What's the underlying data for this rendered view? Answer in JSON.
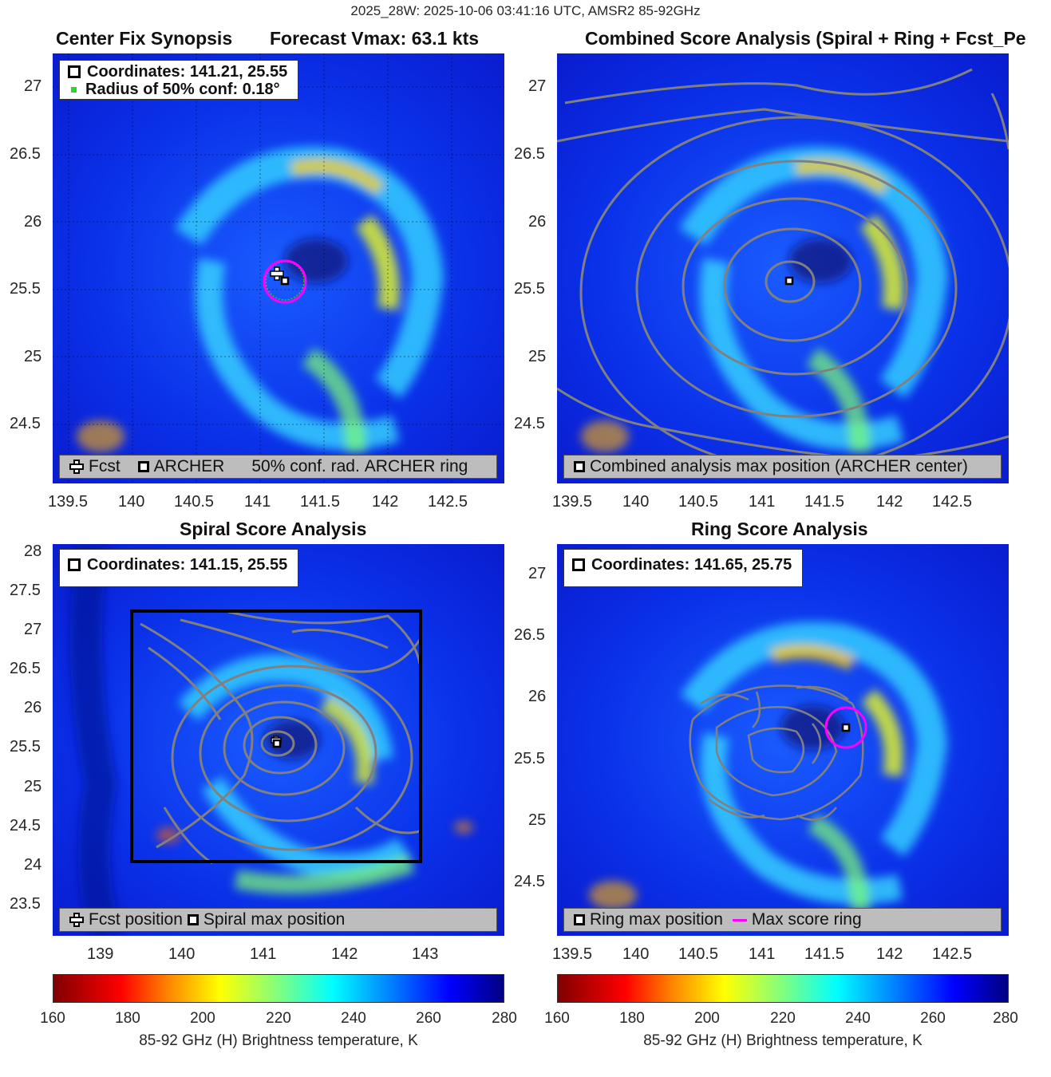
{
  "suptitle": "2025_28W: 2025-10-06 03:41:16 UTC, AMSR2 85-92GHz",
  "colors": {
    "contour": "#808080",
    "ring": "#ff00ff",
    "conf": "#22dd22",
    "legend_bg": "#bdbdbd"
  },
  "panels": {
    "synopsis": {
      "title_left": "Center Fix Synopsis",
      "title_right": "Forecast Vmax: 63.1 kts",
      "legend_coords": "Coordinates: 141.21, 25.55",
      "legend_radius": "Radius of 50% conf: 0.18°",
      "bottom_legend": [
        "Fcst",
        "ARCHER",
        "50% conf. rad.",
        "ARCHER ring"
      ],
      "yticks": [
        "27",
        "26.5",
        "26",
        "25.5",
        "25",
        "24.5"
      ],
      "xticks": [
        "139.5",
        "140",
        "140.5",
        "141",
        "141.5",
        "142",
        "142.5"
      ]
    },
    "combined": {
      "title": "Combined Score Analysis (Spiral + Ring + Fcst_Pe",
      "bottom_legend": [
        "Combined analysis max position (ARCHER center)"
      ],
      "yticks": [
        "27",
        "26.5",
        "26",
        "25.5",
        "25",
        "24.5"
      ],
      "xticks": [
        "139.5",
        "140",
        "140.5",
        "141",
        "141.5",
        "142",
        "142.5"
      ]
    },
    "spiral": {
      "title": "Spiral Score Analysis",
      "legend_coords": "Coordinates: 141.15, 25.55",
      "bottom_legend": [
        "Fcst position",
        "Spiral max position"
      ],
      "yticks": [
        "28",
        "27.5",
        "27",
        "26.5",
        "26",
        "25.5",
        "25",
        "24.5",
        "24",
        "23.5"
      ],
      "xticks": [
        "139",
        "140",
        "141",
        "142",
        "143"
      ]
    },
    "ring": {
      "title": "Ring Score Analysis",
      "legend_coords": "Coordinates: 141.65, 25.75",
      "bottom_legend": [
        "Ring max position",
        "Max score ring"
      ],
      "yticks": [
        "27",
        "26.5",
        "26",
        "25.5",
        "25",
        "24.5"
      ],
      "xticks": [
        "139.5",
        "140",
        "140.5",
        "141",
        "141.5",
        "142",
        "142.5"
      ]
    }
  },
  "colorbars": {
    "ticks": [
      "160",
      "180",
      "200",
      "220",
      "240",
      "260",
      "280"
    ],
    "label": "85-92 GHz (H) Brightness temperature, K"
  },
  "chart_data": [
    {
      "type": "heatmap",
      "title": "Center Fix Synopsis",
      "subtitle": "Forecast Vmax: 63.1 kts",
      "xlim": [
        139.35,
        142.9
      ],
      "ylim": [
        24.05,
        27.25
      ],
      "forecast_position": [
        141.15,
        25.6
      ],
      "archer_center": [
        141.21,
        25.55
      ],
      "radius_50pct_conf_deg": 0.18,
      "colorbar_range_K": [
        160,
        280
      ]
    },
    {
      "type": "heatmap",
      "title": "Combined Score Analysis (Spiral + Ring + Fcst_Pe",
      "xlim": [
        139.35,
        142.9
      ],
      "ylim": [
        24.05,
        27.25
      ],
      "max_position": [
        141.21,
        25.55
      ],
      "colorbar_range_K": [
        160,
        280
      ]
    },
    {
      "type": "heatmap",
      "title": "Spiral Score Analysis",
      "xlim": [
        138.4,
        143.95
      ],
      "ylim": [
        23.2,
        28.2
      ],
      "spiral_max_position": [
        141.15,
        25.55
      ],
      "search_box": {
        "x": [
          139.35,
          142.9
        ],
        "y": [
          24.05,
          27.25
        ]
      },
      "colorbar_range_K": [
        160,
        280
      ]
    },
    {
      "type": "heatmap",
      "title": "Ring Score Analysis",
      "xlim": [
        139.35,
        142.9
      ],
      "ylim": [
        24.05,
        27.25
      ],
      "ring_max_position": [
        141.65,
        25.75
      ],
      "colorbar_range_K": [
        160,
        280
      ]
    }
  ]
}
